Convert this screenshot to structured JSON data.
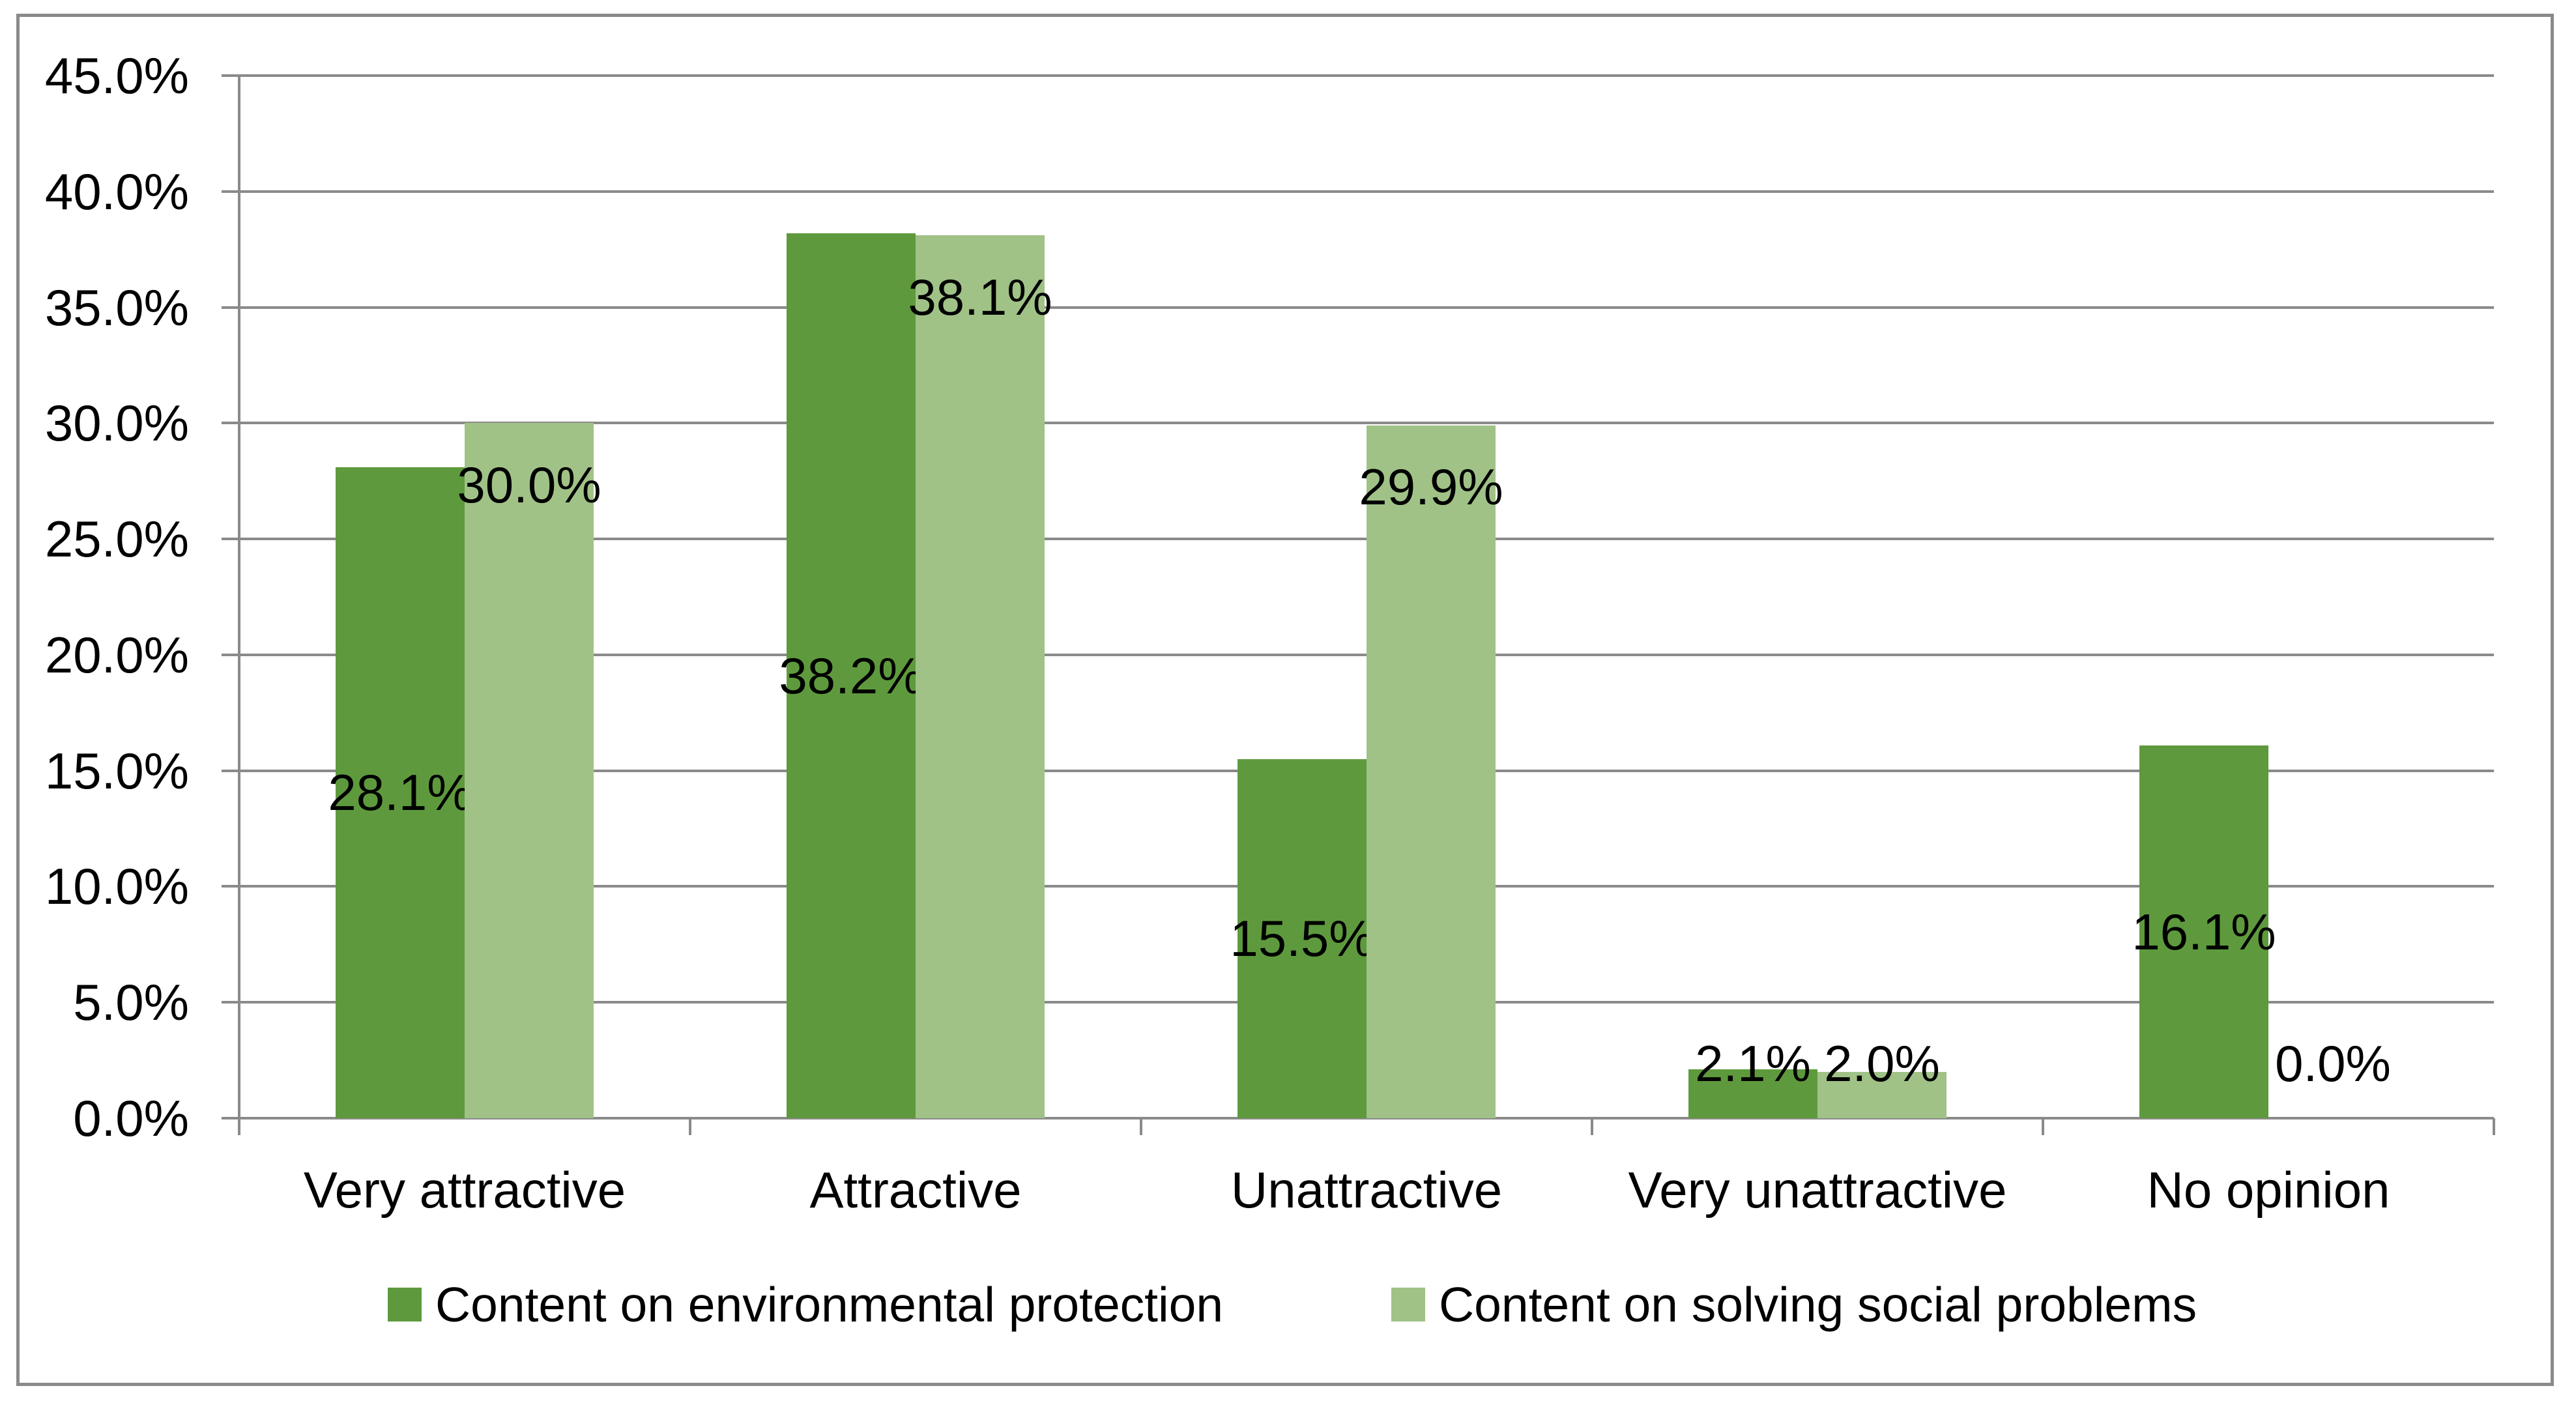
{
  "chart_data": {
    "type": "bar",
    "title": "",
    "categories": [
      "Very attractive",
      "Attractive",
      "Unattractive",
      "Very unattractive",
      "No opinion"
    ],
    "series": [
      {
        "name": "Content on environmental protection",
        "color": "#5E9A3D",
        "values": [
          28.1,
          38.2,
          15.5,
          2.1,
          16.1
        ],
        "data_labels": [
          "28.1%",
          "38.2%",
          "15.5%",
          "2.1%",
          "16.1%"
        ]
      },
      {
        "name": "Content on solving social problems",
        "color": "#A0C287",
        "values": [
          30.0,
          38.1,
          29.9,
          2.0,
          0.0
        ],
        "data_labels": [
          "30.0%",
          "38.1%",
          "29.9%",
          "2.0%",
          "0.0%"
        ]
      }
    ],
    "y_axis": {
      "min": 0,
      "max": 45,
      "step": 5,
      "tick_labels": [
        "0.0%",
        "5.0%",
        "10.0%",
        "15.0%",
        "20.0%",
        "25.0%",
        "30.0%",
        "35.0%",
        "40.0%",
        "45.0%"
      ]
    },
    "grid": true,
    "legend_position": "bottom"
  },
  "colors": {
    "axis": "#8A8A8A",
    "gridline": "#8A8A8A",
    "border": "#8A8A8A",
    "label": "#000000",
    "background": "#FFFFFF"
  }
}
